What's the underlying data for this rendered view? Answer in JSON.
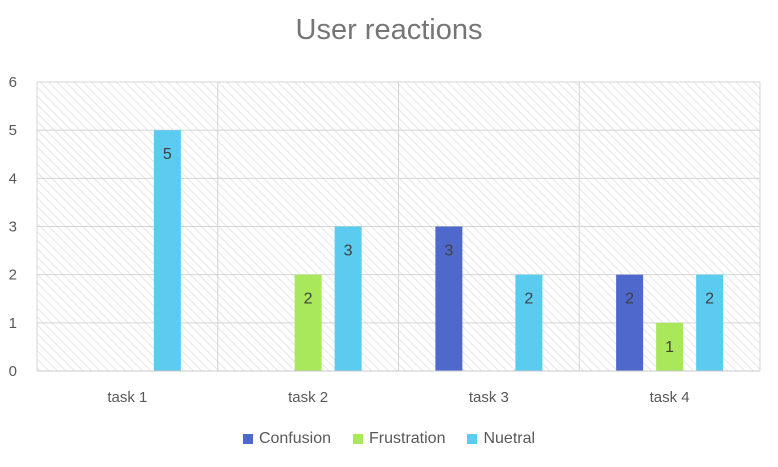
{
  "chart_data": {
    "type": "bar",
    "title": "User reactions",
    "categories": [
      "task 1",
      "task 2",
      "task 3",
      "task 4"
    ],
    "series": [
      {
        "name": "Confusion",
        "color": "#4F68CB",
        "values": [
          null,
          null,
          3,
          2
        ]
      },
      {
        "name": "Frustration",
        "color": "#A8E85A",
        "values": [
          null,
          2,
          null,
          1
        ]
      },
      {
        "name": "Nuetral",
        "color": "#5BCBF0",
        "values": [
          5,
          3,
          2,
          2
        ]
      }
    ],
    "ylim": [
      0,
      6
    ],
    "yticks": [
      0,
      1,
      2,
      3,
      4,
      5,
      6
    ],
    "grid": true,
    "legend_position": "bottom",
    "plot_background": "hatched"
  }
}
